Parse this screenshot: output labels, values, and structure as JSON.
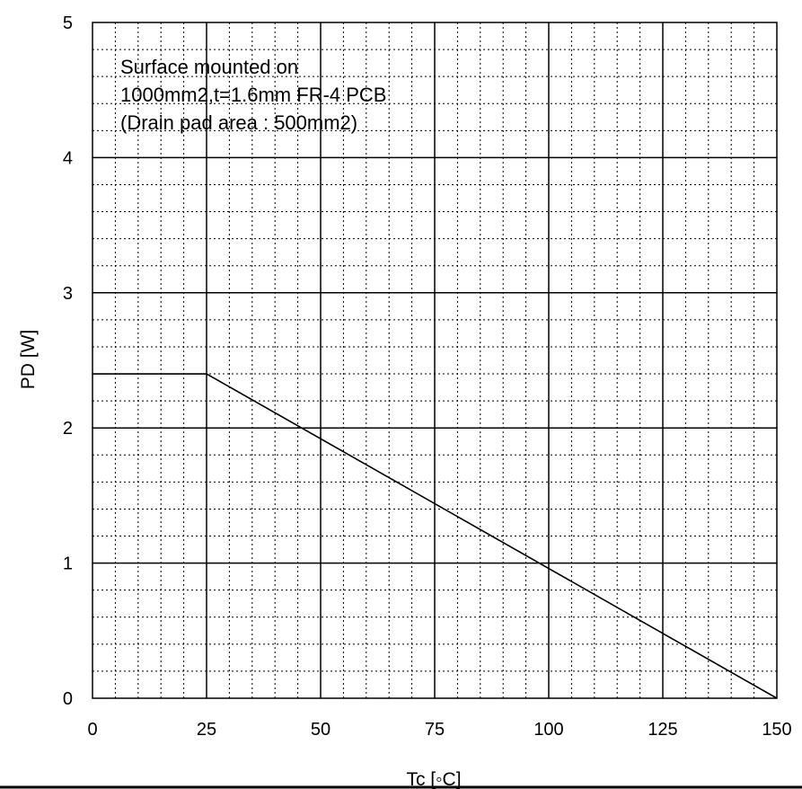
{
  "chart_data": {
    "type": "line",
    "title": "",
    "xlabel": "Tc [◦C]",
    "ylabel": "PD [W]",
    "xlim": [
      0,
      150
    ],
    "ylim": [
      0,
      5
    ],
    "x_ticks": [
      "0",
      "25",
      "50",
      "75",
      "100",
      "125",
      "150"
    ],
    "y_ticks": [
      "0",
      "1",
      "2",
      "3",
      "4",
      "5"
    ],
    "grid": true,
    "annotation": [
      "Surface mounted on",
      "1000mm2,t=1.6mm FR-4 PCB",
      "(Drain pad area : 500mm2)"
    ],
    "series": [
      {
        "x": [
          0,
          25,
          150
        ],
        "y": [
          2.4,
          2.4,
          0
        ]
      }
    ]
  }
}
